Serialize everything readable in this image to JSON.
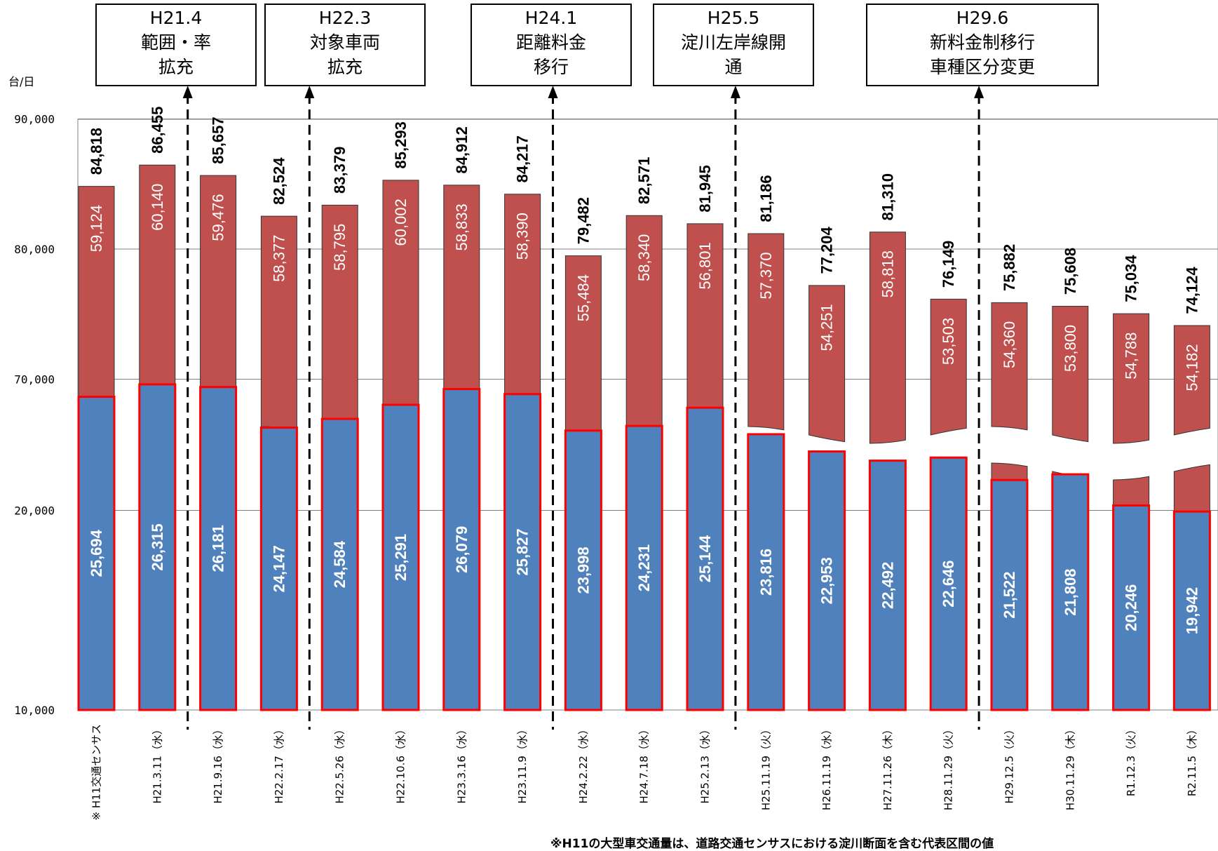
{
  "chart_data": {
    "type": "bar",
    "ylabel": "台/日",
    "y_ticks": [
      "10,000",
      "20,000",
      "70,000",
      "80,000",
      "90,000"
    ],
    "ylim_lower": [
      10000,
      25000
    ],
    "ylim_upper": [
      70000,
      90000
    ],
    "axis_break": true,
    "categories": [
      "※ H11交通センサス",
      "H21.3.11（水）",
      "H21.9.16（水）",
      "H22.2.17（水）",
      "H22.5.26（水）",
      "H22.10.6（水）",
      "H23.3.16（水）",
      "H23.11.9（水）",
      "H24.2.22（水）",
      "H24.7.18（水）",
      "H25.2.13（水）",
      "H25.11.19（火）",
      "H26.11.19（水）",
      "H27.11.26（木）",
      "H28.11.29（火）",
      "H29.12.5（火）",
      "H30.11.29（木）",
      "R1.12.3（火）",
      "R2.11.5（木）"
    ],
    "series": [
      {
        "color": "#4f81bd",
        "outline": "#ff0000",
        "values": [
          25694,
          26315,
          26181,
          24147,
          24584,
          25291,
          26079,
          25827,
          23998,
          24231,
          25144,
          23816,
          22953,
          22492,
          22646,
          21522,
          21808,
          20246,
          19942
        ],
        "labels": [
          "25,694",
          "26,315",
          "26,181",
          "24,147",
          "24,584",
          "25,291",
          "26,079",
          "25,827",
          "23,998",
          "24,231",
          "25,144",
          "23,816",
          "22,953",
          "22,492",
          "22,646",
          "21,522",
          "21,808",
          "20,246",
          "19,942"
        ]
      },
      {
        "color": "#c0504d",
        "values": [
          59124,
          60140,
          59476,
          58377,
          58795,
          60002,
          58833,
          58390,
          55484,
          58340,
          56801,
          57370,
          54251,
          58818,
          53503,
          54360,
          53800,
          54788,
          54182
        ],
        "labels": [
          "59,124",
          "60,140",
          "59,476",
          "58,377",
          "58,795",
          "60,002",
          "58,833",
          "58,390",
          "55,484",
          "58,340",
          "56,801",
          "57,370",
          "54,251",
          "58,818",
          "53,503",
          "54,360",
          "53,800",
          "54,788",
          "54,182"
        ]
      }
    ],
    "totals": [
      84818,
      86455,
      85657,
      82524,
      83379,
      85293,
      84912,
      84217,
      79482,
      82571,
      81945,
      81186,
      77204,
      81310,
      76149,
      75882,
      75608,
      75034,
      74124
    ],
    "total_labels": [
      "84,818",
      "86,455",
      "85,657",
      "82,524",
      "83,379",
      "85,293",
      "84,912",
      "84,217",
      "79,482",
      "82,571",
      "81,945",
      "81,186",
      "77,204",
      "81,310",
      "76,149",
      "75,882",
      "75,608",
      "75,034",
      "74,124"
    ],
    "annotations": [
      {
        "lines": [
          "H21.4",
          "範囲・率",
          "拡充"
        ],
        "between": [
          1,
          2
        ]
      },
      {
        "lines": [
          "H22.3",
          "対象車両",
          "拡充"
        ],
        "between": [
          3,
          4
        ]
      },
      {
        "lines": [
          "H24.1",
          "距離料金",
          "移行"
        ],
        "between": [
          7,
          8
        ]
      },
      {
        "lines": [
          "H25.5",
          "淀川左岸線開",
          "通"
        ],
        "between": [
          10,
          11
        ]
      },
      {
        "lines": [
          "H29.6",
          "新料金制移行",
          "車種区分変更"
        ],
        "between": [
          14,
          15
        ]
      }
    ],
    "note": "※H11の大型車交通量は、道路交通センサスにおける淀川断面を含む代表区間の値"
  }
}
